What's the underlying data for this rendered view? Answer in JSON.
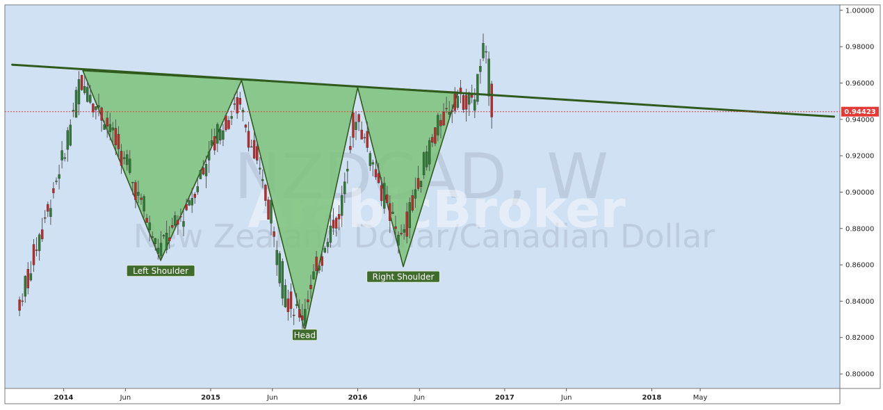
{
  "watermark": {
    "symbol": "NZDCAD, W",
    "description": "New Zealand Dollar/Canadian Dollar",
    "brand": "ArabicBroker"
  },
  "colors": {
    "background": "#cfe1f3",
    "up_candle": "#2e7d32",
    "down_candle": "#c62828",
    "wick": "#555555",
    "pattern_fill": "#7dc27a",
    "pattern_stroke": "#2f5a1c",
    "neckline": "#2f5a1c",
    "label_bg": "#3f6b2c",
    "price_line": "#e53935"
  },
  "chart_data": {
    "type": "candlestick",
    "title": "",
    "y_axis": {
      "min": 0.792,
      "max": 1.003,
      "ticks": [
        "0.80000",
        "0.82000",
        "0.84000",
        "0.86000",
        "0.88000",
        "0.90000",
        "0.92000",
        "0.94000",
        "0.96000",
        "0.98000",
        "1.00000"
      ]
    },
    "x_axis": {
      "ticks": [
        {
          "label": "2014",
          "major": true
        },
        {
          "label": "Jun",
          "major": false
        },
        {
          "label": "2015",
          "major": true
        },
        {
          "label": "Jun",
          "major": false
        },
        {
          "label": "2016",
          "major": true
        },
        {
          "label": "Jun",
          "major": false
        },
        {
          "label": "2017",
          "major": true
        },
        {
          "label": "Jun",
          "major": false
        },
        {
          "label": "2018",
          "major": true
        },
        {
          "label": "May",
          "major": false
        }
      ]
    },
    "current_price": "0.94423",
    "pattern": {
      "name": "Inverse Head and Shoulders",
      "points": [
        {
          "name": "left-peak",
          "x": 2014.13,
          "y": 0.9668
        },
        {
          "name": "left-shoulder",
          "x": 2014.66,
          "y": 0.8624
        },
        {
          "name": "middle-peak-1",
          "x": 2015.21,
          "y": 0.9615
        },
        {
          "name": "head",
          "x": 2015.64,
          "y": 0.8235
        },
        {
          "name": "middle-peak-2",
          "x": 2016.0,
          "y": 0.9575
        },
        {
          "name": "right-shoulder",
          "x": 2016.31,
          "y": 0.859
        },
        {
          "name": "right-peak",
          "x": 2016.68,
          "y": 0.955
        }
      ],
      "labels": [
        {
          "text": "Left Shoulder",
          "x": 2014.66,
          "y": 0.8567
        },
        {
          "text": "Head",
          "x": 2015.64,
          "y": 0.8215
        },
        {
          "text": "Right Shoulder",
          "x": 2016.31,
          "y": 0.8535
        }
      ],
      "neckline": {
        "x1": 2013.65,
        "y1": 0.9701,
        "x2": 2019.24,
        "y2": 0.9415
      }
    },
    "key_prices": [
      {
        "x": 2013.7,
        "y": 0.835
      },
      {
        "x": 2013.85,
        "y": 0.875
      },
      {
        "x": 2014.0,
        "y": 0.915
      },
      {
        "x": 2014.13,
        "y": 0.962
      },
      {
        "x": 2014.33,
        "y": 0.935
      },
      {
        "x": 2014.5,
        "y": 0.903
      },
      {
        "x": 2014.66,
        "y": 0.868
      },
      {
        "x": 2014.85,
        "y": 0.89
      },
      {
        "x": 2015.05,
        "y": 0.93
      },
      {
        "x": 2015.21,
        "y": 0.95
      },
      {
        "x": 2015.4,
        "y": 0.895
      },
      {
        "x": 2015.52,
        "y": 0.842
      },
      {
        "x": 2015.64,
        "y": 0.832
      },
      {
        "x": 2015.8,
        "y": 0.875
      },
      {
        "x": 2015.9,
        "y": 0.89
      },
      {
        "x": 2016.0,
        "y": 0.945
      },
      {
        "x": 2016.12,
        "y": 0.915
      },
      {
        "x": 2016.2,
        "y": 0.895
      },
      {
        "x": 2016.31,
        "y": 0.872
      },
      {
        "x": 2016.42,
        "y": 0.905
      },
      {
        "x": 2016.55,
        "y": 0.935
      },
      {
        "x": 2016.7,
        "y": 0.953
      },
      {
        "x": 2016.8,
        "y": 0.948
      },
      {
        "x": 2016.88,
        "y": 0.98
      },
      {
        "x": 2016.93,
        "y": 0.945
      }
    ]
  }
}
